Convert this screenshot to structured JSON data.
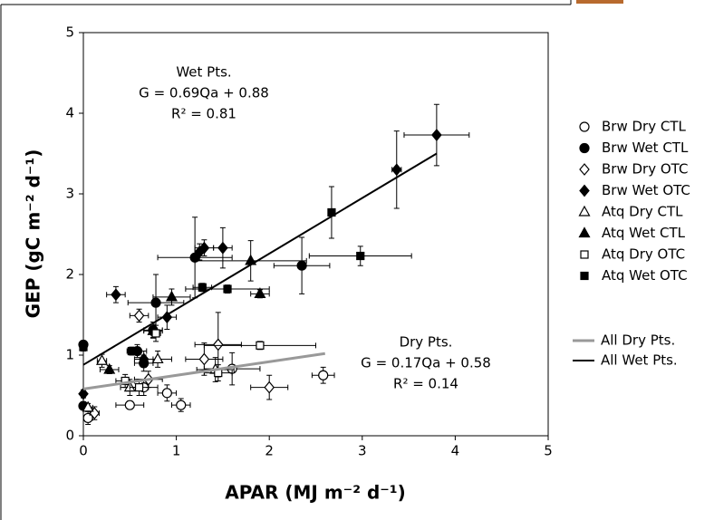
{
  "chart_data": {
    "type": "scatter",
    "xlabel": "APAR (MJ m⁻² d⁻¹)",
    "ylabel": "GEP (gC m⁻² d⁻¹)",
    "xlim": [
      0,
      5
    ],
    "ylim": [
      0,
      5
    ],
    "xticks": [
      0,
      1,
      2,
      3,
      4,
      5
    ],
    "yticks": [
      0,
      1,
      2,
      3,
      4,
      5
    ],
    "legend": "right",
    "annotations": [
      {
        "lines": [
          "Wet Pts.",
          "G = 0.69Qa + 0.88",
          "R² = 0.81"
        ]
      },
      {
        "lines": [
          "Dry Pts.",
          "G = 0.17Qa + 0.58",
          "R² = 0.14"
        ]
      }
    ],
    "series": [
      {
        "name": "Brw Dry CTL",
        "marker": "circle",
        "filled": false,
        "color": "#000000",
        "x": [
          0.05,
          0.5,
          1.05,
          0.9,
          1.6,
          2.58,
          0.65
        ],
        "values": [
          0.22,
          0.38,
          0.38,
          0.53,
          0.83,
          0.75,
          0.6
        ],
        "xerr": [
          0.05,
          0.15,
          0.1,
          0.1,
          0.3,
          0.12,
          0.15
        ],
        "yerr": [
          0.08,
          0.05,
          0.08,
          0.1,
          0.2,
          0.1,
          0.1
        ]
      },
      {
        "name": "Brw Wet CTL",
        "marker": "circle",
        "filled": true,
        "color": "#000000",
        "x": [
          1.2,
          2.35,
          0.78,
          0,
          0.75,
          0.58,
          0.65,
          0
        ],
        "values": [
          2.21,
          2.11,
          1.65,
          1.13,
          1.31,
          1.05,
          0.9,
          0.37
        ],
        "xerr": [
          0.4,
          0.3,
          0.3,
          0.02,
          0.1,
          0.1,
          0.1,
          0.02
        ],
        "yerr": [
          0.5,
          0.35,
          0.35,
          0.05,
          0.1,
          0.08,
          0.1,
          0.05
        ]
      },
      {
        "name": "Brw Dry OTC",
        "marker": "diamond",
        "filled": false,
        "color": "#000000",
        "x": [
          0.6,
          1.45,
          0.12,
          2.0,
          1.3,
          0.7
        ],
        "values": [
          1.49,
          1.13,
          0.28,
          0.6,
          0.95,
          0.7
        ],
        "xerr": [
          0.1,
          0.25,
          0.05,
          0.2,
          0.2,
          0.15
        ],
        "yerr": [
          0.08,
          0.4,
          0.08,
          0.15,
          0.2,
          0.1
        ]
      },
      {
        "name": "Brw Wet OTC",
        "marker": "diamond",
        "filled": true,
        "color": "#000000",
        "x": [
          3.8,
          3.37,
          1.5,
          1.3,
          1.25,
          0.35,
          0.9,
          0,
          0.65
        ],
        "values": [
          3.73,
          3.3,
          2.33,
          2.33,
          2.28,
          1.75,
          1.47,
          0.52,
          0.95
        ],
        "xerr": [
          0.35,
          0.05,
          0.1,
          0.1,
          0.05,
          0.1,
          0.1,
          0.02,
          0.1
        ],
        "yerr": [
          0.38,
          0.48,
          0.25,
          0.1,
          0.1,
          0.1,
          0.15,
          0.05,
          0.1
        ]
      },
      {
        "name": "Atq Dry CTL",
        "marker": "triangle",
        "filled": false,
        "color": "#000000",
        "x": [
          0.05,
          0.2,
          0.8,
          1.42,
          0.5
        ],
        "values": [
          0.35,
          0.93,
          0.95,
          0.82,
          0.6
        ],
        "xerr": [
          0.05,
          0.05,
          0.15,
          0.2,
          0.1
        ],
        "yerr": [
          0.05,
          0.08,
          0.1,
          0.15,
          0.1
        ]
      },
      {
        "name": "Atq Wet CTL",
        "marker": "triangle",
        "filled": true,
        "color": "#000000",
        "x": [
          1.8,
          1.9,
          0.95,
          0.28,
          0.75
        ],
        "values": [
          2.17,
          1.76,
          1.72,
          0.82,
          1.3
        ],
        "xerr": [
          0.6,
          0.1,
          0.2,
          0.1,
          0.1
        ],
        "yerr": [
          0.25,
          0.05,
          0.1,
          0.05,
          0.08
        ]
      },
      {
        "name": "Atq Dry OTC",
        "marker": "square",
        "filled": false,
        "color": "#000000",
        "x": [
          0.78,
          1.9,
          1.45,
          0.45,
          0.6
        ],
        "values": [
          1.27,
          1.12,
          0.78,
          0.68,
          0.6
        ],
        "xerr": [
          0.05,
          0.6,
          0.15,
          0.1,
          0.1
        ],
        "yerr": [
          0.1,
          0.05,
          0.1,
          0.08,
          0.1
        ]
      },
      {
        "name": "Atq Wet OTC",
        "marker": "square",
        "filled": true,
        "color": "#000000",
        "x": [
          2.67,
          2.98,
          1.28,
          1.55,
          0.52,
          0
        ],
        "values": [
          2.77,
          2.23,
          1.84,
          1.82,
          1.05,
          1.1
        ],
        "xerr": [
          0.03,
          0.55,
          0.1,
          0.45,
          0.05,
          0.02
        ],
        "yerr": [
          0.32,
          0.12,
          0.05,
          0.05,
          0.05,
          0.05
        ]
      },
      {
        "name": "All Dry Pts.",
        "marker": "line",
        "color": "#999999",
        "width": 3,
        "x": [
          0,
          2.6
        ],
        "values": [
          0.58,
          1.02
        ]
      },
      {
        "name": "All Wet Pts.",
        "marker": "line",
        "color": "#000000",
        "width": 2,
        "x": [
          0,
          3.8
        ],
        "values": [
          0.88,
          3.5
        ]
      }
    ]
  }
}
